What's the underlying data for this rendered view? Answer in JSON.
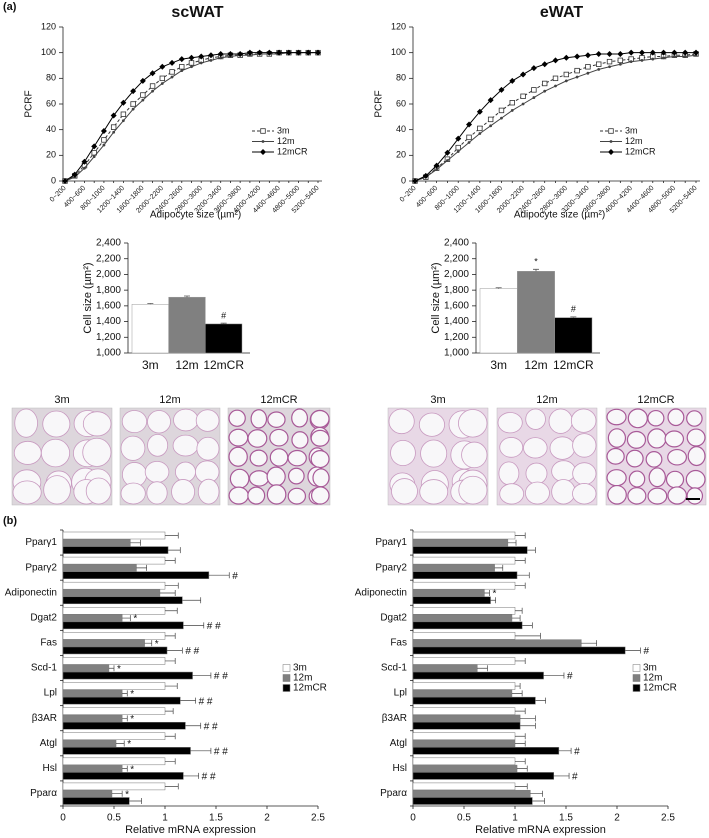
{
  "panel_labels": [
    "(a)",
    "(b)"
  ],
  "micrographs": [
    {
      "labels": [
        "3m",
        "12m",
        "12mCR"
      ]
    },
    {
      "labels": [
        "3m",
        "12m",
        "12mCR"
      ]
    }
  ],
  "chart_data": [
    {
      "type": "line",
      "title": "scWAT",
      "y_label": "PCRF",
      "x_label": "Adipocyte size (µm²)",
      "categories": [
        "0~200",
        null,
        "400~600",
        null,
        "800~1000",
        null,
        "1200~1400",
        null,
        "1600~1800",
        null,
        "2000~2200",
        null,
        "2400~2600",
        null,
        "2800~3000",
        null,
        "3200~3400",
        null,
        "3600~3800",
        null,
        "4000~4200",
        null,
        "4400~4600",
        null,
        "4800~5000",
        null,
        "5200~5400"
      ],
      "ylim": [
        0,
        120
      ],
      "yticks": [
        0,
        20,
        40,
        60,
        80,
        100,
        120
      ],
      "legend": "right",
      "series": [
        {
          "name": "3m",
          "color": "#333333",
          "dash": true,
          "marker": "square-open",
          "values": [
            0,
            4,
            12,
            22,
            32,
            42,
            52,
            60,
            67,
            74,
            80,
            85,
            89,
            92,
            94,
            96,
            97,
            98,
            98,
            99,
            99,
            99,
            100,
            100,
            100,
            100,
            100
          ]
        },
        {
          "name": "12m",
          "color": "#444444",
          "dash": false,
          "marker": "dot",
          "values": [
            0,
            3,
            10,
            19,
            28,
            38,
            47,
            56,
            63,
            70,
            76,
            81,
            86,
            89,
            92,
            94,
            96,
            97,
            98,
            98,
            99,
            99,
            99,
            100,
            100,
            100,
            100
          ]
        },
        {
          "name": "12mCR",
          "color": "#000000",
          "dash": false,
          "marker": "diamond",
          "values": [
            0,
            5,
            15,
            27,
            39,
            51,
            61,
            70,
            78,
            84,
            89,
            92,
            95,
            96,
            97,
            98,
            99,
            99,
            99,
            100,
            100,
            100,
            100,
            100,
            100,
            100,
            100
          ]
        }
      ]
    },
    {
      "type": "line",
      "title": "eWAT",
      "y_label": "PCRF",
      "x_label": "Adipocyte size (µm²)",
      "categories": [
        "0~200",
        null,
        "400~600",
        null,
        "800~1000",
        null,
        "1200~1400",
        null,
        "1600~1800",
        null,
        "2000~2200",
        null,
        "2400~2600",
        null,
        "2800~3000",
        null,
        "3200~3400",
        null,
        "3600~3800",
        null,
        "4000~4200",
        null,
        "4400~4600",
        null,
        "4800~5000",
        null,
        "5200~5400"
      ],
      "ylim": [
        0,
        120
      ],
      "yticks": [
        0,
        20,
        40,
        60,
        80,
        100,
        120
      ],
      "legend": "right",
      "series": [
        {
          "name": "3m",
          "color": "#333333",
          "dash": true,
          "marker": "square-open",
          "values": [
            0,
            3,
            10,
            17,
            26,
            34,
            41,
            48,
            55,
            61,
            66,
            71,
            76,
            80,
            83,
            86,
            89,
            91,
            93,
            94,
            95,
            96,
            97,
            97,
            98,
            98,
            99
          ]
        },
        {
          "name": "12m",
          "color": "#444444",
          "dash": false,
          "marker": "dot",
          "values": [
            0,
            3,
            9,
            16,
            23,
            30,
            37,
            43,
            49,
            55,
            60,
            65,
            70,
            74,
            78,
            81,
            84,
            87,
            89,
            91,
            93,
            94,
            95,
            96,
            97,
            97,
            98
          ]
        },
        {
          "name": "12mCR",
          "color": "#000000",
          "dash": false,
          "marker": "diamond",
          "values": [
            0,
            4,
            12,
            22,
            33,
            44,
            54,
            63,
            71,
            78,
            83,
            88,
            91,
            94,
            96,
            97,
            98,
            99,
            99,
            99,
            100,
            100,
            100,
            100,
            100,
            100,
            100
          ]
        }
      ]
    },
    {
      "type": "bar",
      "y_label": "Cell size (µm²)",
      "categories": [
        "3m",
        "12m",
        "12mCR"
      ],
      "values": [
        1620,
        1710,
        1370
      ],
      "errors": [
        10,
        15,
        10
      ],
      "annotations": [
        null,
        null,
        "#"
      ],
      "colors": [
        "#ffffff",
        "#808080",
        "#000000"
      ],
      "ylim": [
        1000,
        2400
      ],
      "yticks": [
        {
          "value": 1000,
          "label": "1,000"
        },
        {
          "value": 1200,
          "label": "1,200"
        },
        {
          "value": 1400,
          "label": "1,400"
        },
        {
          "value": 1600,
          "label": "1,600"
        },
        {
          "value": 1800,
          "label": "1,800"
        },
        {
          "value": 2000,
          "label": "2,000"
        },
        {
          "value": 2200,
          "label": "2,200"
        },
        {
          "value": 2400,
          "label": "2,400"
        }
      ]
    },
    {
      "type": "bar",
      "y_label": "Cell size (µm²)",
      "categories": [
        "3m",
        "12m",
        "12mCR"
      ],
      "values": [
        1820,
        2040,
        1450
      ],
      "errors": [
        10,
        25,
        10
      ],
      "annotations": [
        null,
        "*",
        "#"
      ],
      "colors": [
        "#ffffff",
        "#808080",
        "#000000"
      ],
      "ylim": [
        1000,
        2400
      ],
      "yticks": [
        {
          "value": 1000,
          "label": "1,000"
        },
        {
          "value": 1200,
          "label": "1,200"
        },
        {
          "value": 1400,
          "label": "1,400"
        },
        {
          "value": 1600,
          "label": "1,600"
        },
        {
          "value": 1800,
          "label": "1,800"
        },
        {
          "value": 2000,
          "label": "2,000"
        },
        {
          "value": 2200,
          "label": "2,200"
        },
        {
          "value": 2400,
          "label": "2,400"
        }
      ]
    },
    {
      "type": "hbar",
      "x_label": "Relative mRNA expression",
      "categories": [
        "Pparγ1",
        "Pparγ2",
        "Adiponectin",
        "Dgat2",
        "Fas",
        "Scd-1",
        "Lpl",
        "β3AR",
        "Atgl",
        "Hsl",
        "Pparα"
      ],
      "xlim": [
        0,
        2.5
      ],
      "xticks": [
        0,
        0.5,
        1,
        1.5,
        2,
        2.5
      ],
      "legend": "right",
      "series": [
        {
          "name": "3m",
          "color": "#ffffff",
          "values": [
            1,
            1,
            1,
            1,
            1,
            1,
            1,
            1,
            1,
            1,
            1
          ],
          "errors": [
            0.13,
            0.1,
            0.13,
            0.12,
            0.1,
            0.1,
            0.12,
            0.08,
            0.1,
            0.1,
            0.13
          ],
          "annotations": [
            null,
            null,
            null,
            null,
            null,
            null,
            null,
            null,
            null,
            null,
            null
          ]
        },
        {
          "name": "12m",
          "color": "#808080",
          "values": [
            0.66,
            0.72,
            0.95,
            0.58,
            0.8,
            0.45,
            0.58,
            0.58,
            0.52,
            0.58,
            0.48
          ],
          "errors": [
            0.1,
            0.1,
            0.15,
            0.08,
            0.07,
            0.05,
            0.05,
            0.05,
            0.08,
            0.05,
            0.1
          ],
          "annotations": [
            null,
            null,
            null,
            "*",
            "*",
            "*",
            "*",
            "*",
            "*",
            "*",
            "*"
          ]
        },
        {
          "name": "12mCR",
          "color": "#000000",
          "values": [
            1.03,
            1.43,
            1.17,
            1.18,
            1.02,
            1.27,
            1.15,
            1.2,
            1.25,
            1.18,
            0.65
          ],
          "errors": [
            0.12,
            0.2,
            0.18,
            0.2,
            0.15,
            0.18,
            0.15,
            0.15,
            0.2,
            0.15,
            0.12
          ],
          "annotations": [
            null,
            "#",
            null,
            "# #",
            "# #",
            "# #",
            "# #",
            "# #",
            "# #",
            "# #",
            null
          ]
        }
      ]
    },
    {
      "type": "hbar",
      "x_label": "Relative mRNA expression",
      "categories": [
        "Pparγ1",
        "Pparγ2",
        "Adiponectin",
        "Dgat2",
        "Fas",
        "Scd-1",
        "Lpl",
        "β3AR",
        "Atgl",
        "Hsl",
        "Pparα"
      ],
      "xlim": [
        0,
        2.5
      ],
      "xticks": [
        0,
        0.5,
        1,
        1.5,
        2,
        2.5
      ],
      "legend": "right",
      "series": [
        {
          "name": "3m",
          "color": "#ffffff",
          "values": [
            1,
            1,
            1,
            1,
            1,
            1,
            1,
            1,
            1,
            1,
            1
          ],
          "errors": [
            0.1,
            0.1,
            0.1,
            0.07,
            0.25,
            0.1,
            0.05,
            0.1,
            0.1,
            0.1,
            0.12
          ],
          "annotations": [
            null,
            null,
            null,
            null,
            null,
            null,
            null,
            null,
            null,
            null,
            null
          ]
        },
        {
          "name": "12m",
          "color": "#808080",
          "values": [
            0.93,
            0.8,
            0.7,
            0.97,
            1.65,
            0.63,
            0.97,
            1.05,
            1,
            1.02,
            1.15
          ],
          "errors": [
            0.08,
            0.08,
            0.05,
            0.08,
            0.15,
            0.1,
            0.1,
            0.15,
            0.1,
            0.1,
            0.12
          ],
          "annotations": [
            null,
            null,
            "*",
            null,
            null,
            null,
            null,
            null,
            null,
            null,
            null
          ]
        },
        {
          "name": "12mCR",
          "color": "#000000",
          "values": [
            1.12,
            1.02,
            0.76,
            1.07,
            2.08,
            1.28,
            1.2,
            1.05,
            1.43,
            1.38,
            1.17
          ],
          "errors": [
            0.08,
            0.12,
            0.05,
            0.1,
            0.15,
            0.2,
            0.1,
            0.15,
            0.12,
            0.15,
            0.12
          ],
          "annotations": [
            null,
            null,
            null,
            null,
            "#",
            "#",
            null,
            null,
            "#",
            "#",
            null
          ]
        }
      ]
    }
  ]
}
